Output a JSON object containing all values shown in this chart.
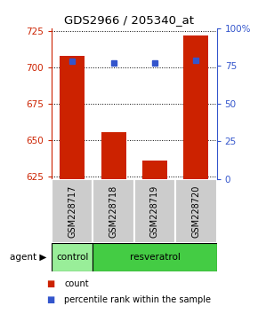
{
  "title": "GDS2966 / 205340_at",
  "samples": [
    "GSM228717",
    "GSM228718",
    "GSM228719",
    "GSM228720"
  ],
  "counts": [
    708,
    655,
    636,
    722
  ],
  "percentiles": [
    78,
    77,
    77,
    79
  ],
  "ylim_left": [
    623,
    727
  ],
  "ylim_right": [
    0,
    100
  ],
  "yticks_left": [
    625,
    650,
    675,
    700,
    725
  ],
  "yticks_right": [
    0,
    25,
    50,
    75,
    100
  ],
  "bar_color": "#cc2200",
  "dot_color": "#3355cc",
  "bar_width": 0.6,
  "agent_labels": [
    "control",
    "resveratrol"
  ],
  "agent_color_control": "#99ee99",
  "agent_color_resveratrol": "#44cc44",
  "sample_box_color": "#cccccc",
  "legend_count_label": "count",
  "legend_pct_label": "percentile rank within the sample",
  "agent_row_label": "agent"
}
